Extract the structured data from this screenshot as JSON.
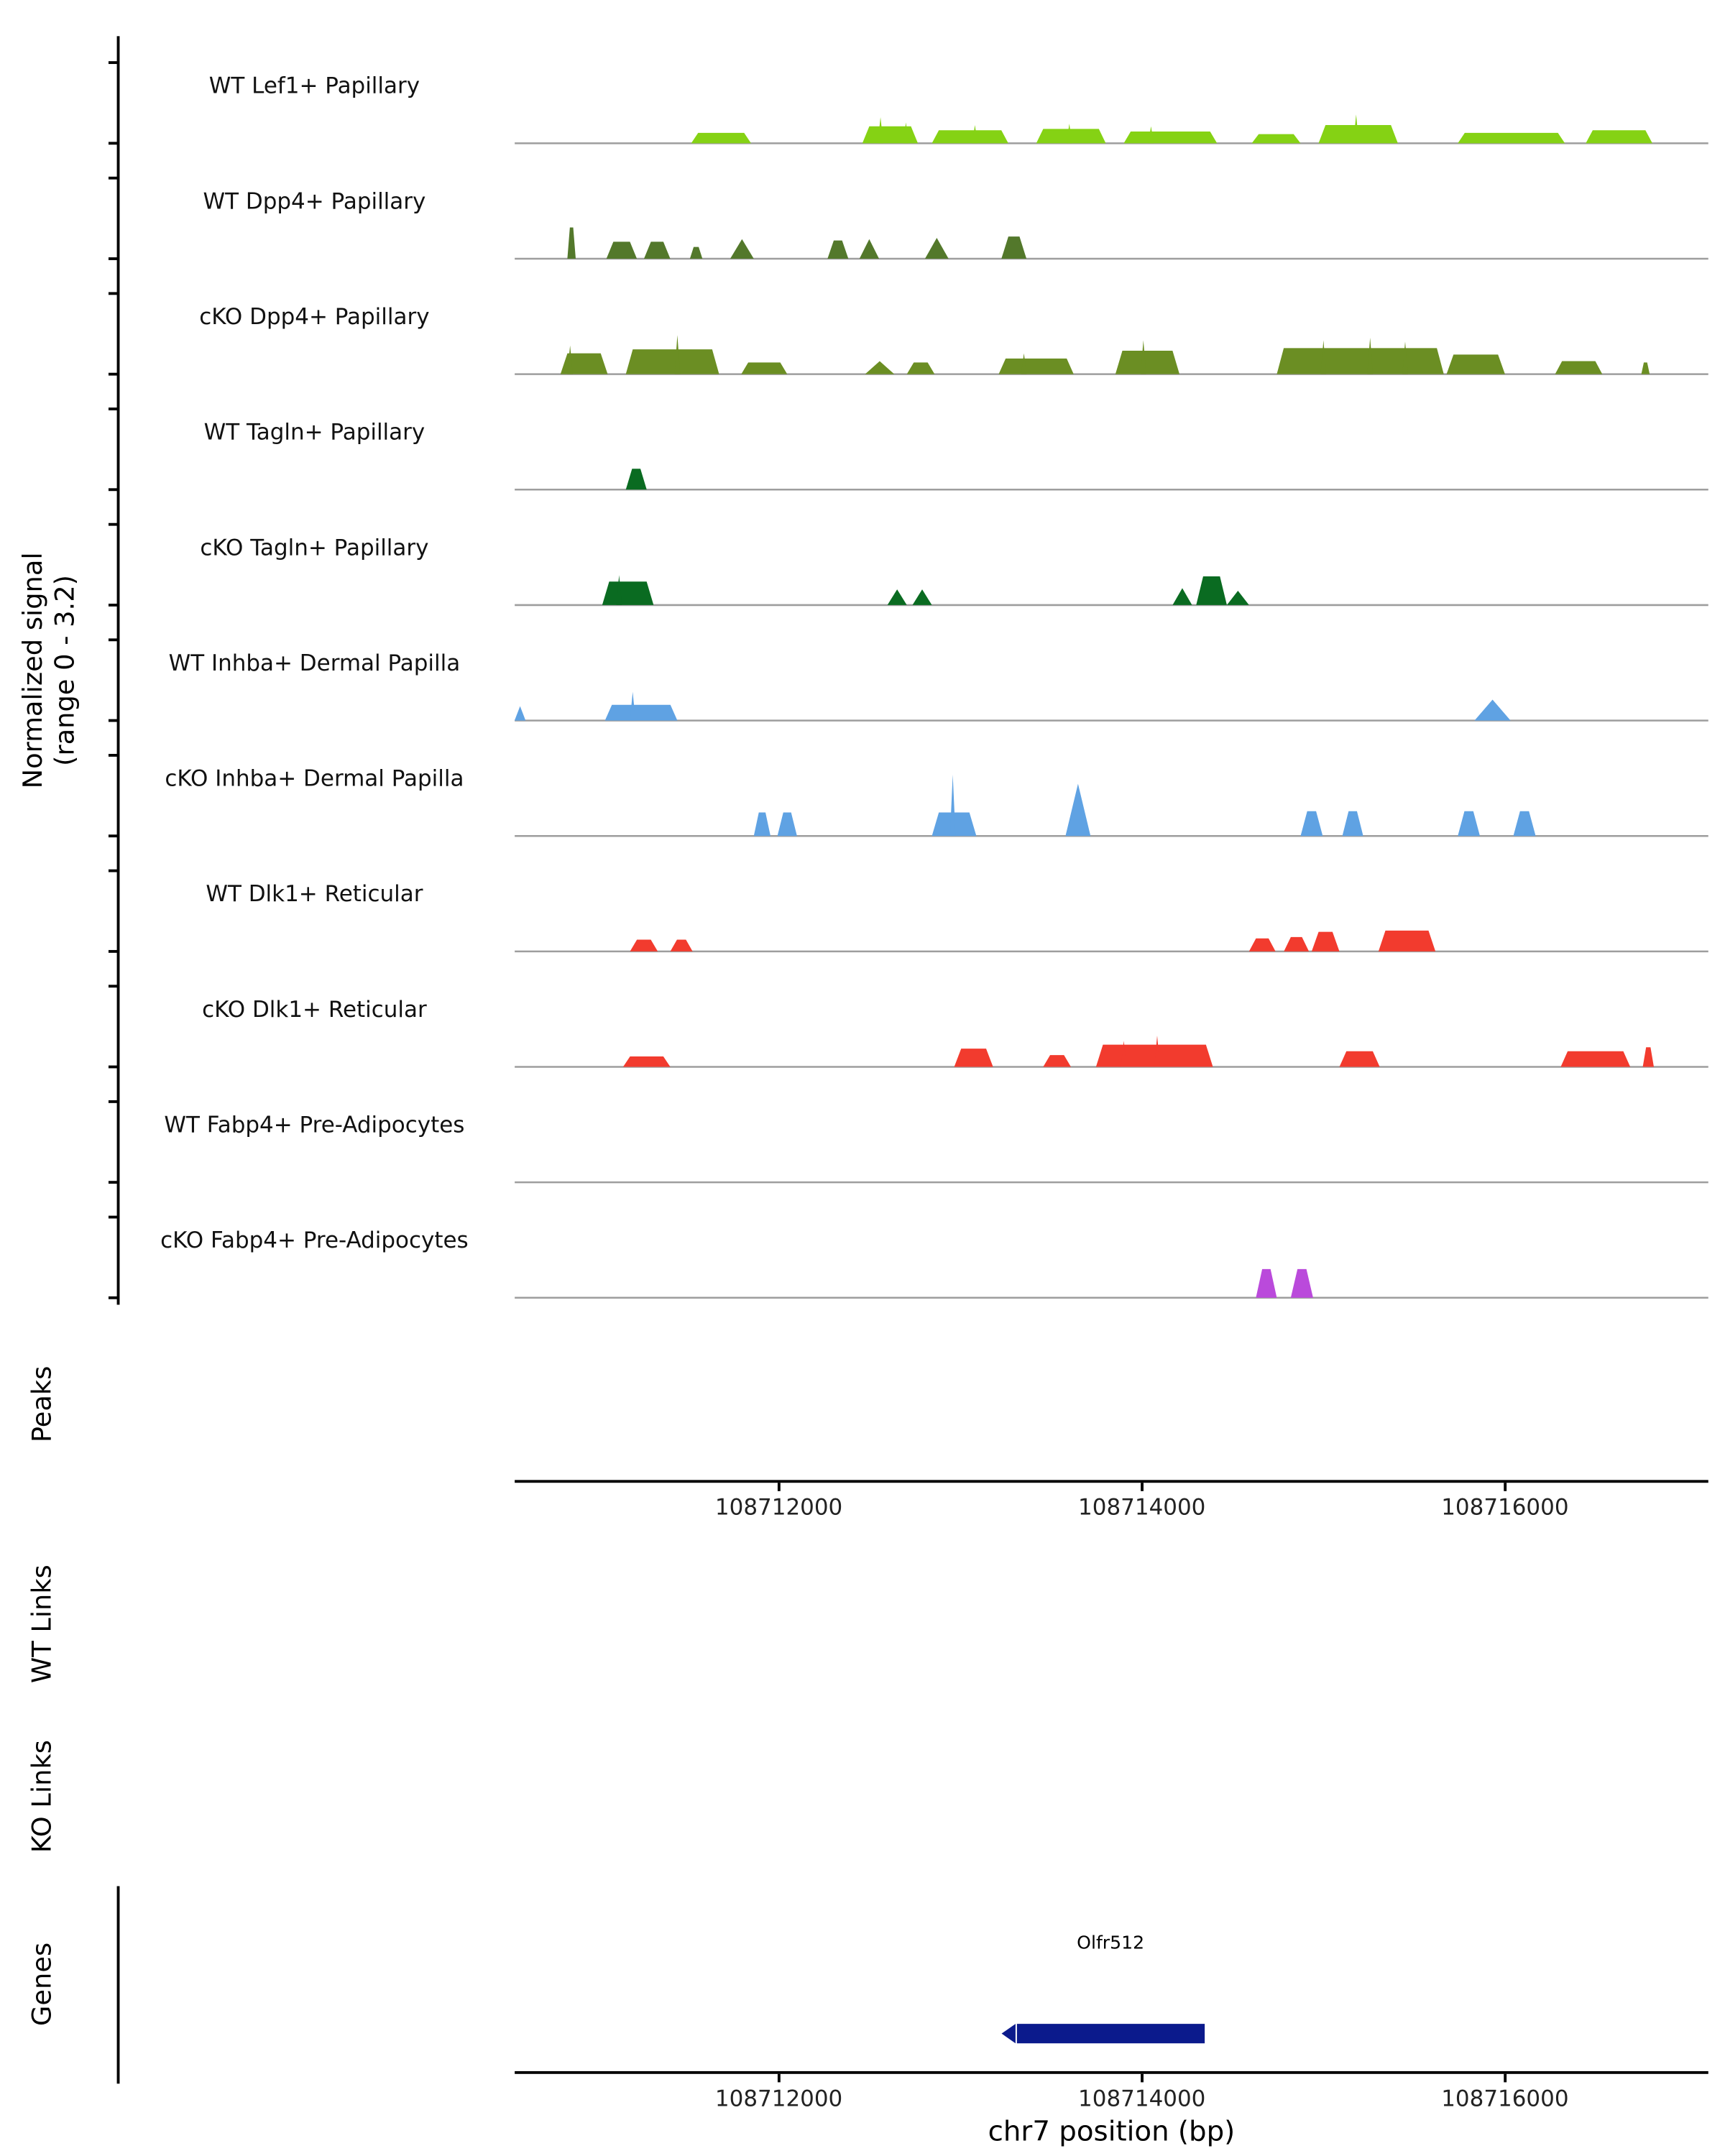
{
  "chart_data": {
    "type": "area",
    "title": "",
    "xlabel": "chr7 position (bp)",
    "y_axis_label": "Normalized signal\n(range 0 - 3.2)",
    "per_track_y_range": [
      0,
      3.2
    ],
    "x_range": [
      108710545,
      108717120
    ],
    "x_ticks": [
      108712000,
      108714000,
      108716000
    ],
    "x_tick_labels": [
      "108712000",
      "108714000",
      "108716000"
    ],
    "grid": false,
    "legend": false,
    "sections": {
      "peaks": "Peaks",
      "wt_links": "WT Links",
      "ko_links": "KO Links",
      "genes": "Genes"
    },
    "baseline_color": "#9e9e9e",
    "genes": [
      {
        "name": "Olfr512",
        "start": 108713310,
        "end": 108714345,
        "strand": "-",
        "color": "#0B1A8C"
      }
    ],
    "tracks": [
      {
        "id": "wt-lef1-papillary",
        "label": "WT Lef1+ Papillary",
        "color": "#85D214",
        "peaks": [
          [
            108711517,
            108711847,
            0.4
          ],
          [
            108712460,
            108712766,
            0.65
          ],
          [
            108712843,
            108713264,
            0.5
          ],
          [
            108713418,
            108713801,
            0.55
          ],
          [
            108713900,
            108714414,
            0.45
          ],
          [
            108714605,
            108714874,
            0.35
          ],
          [
            108714973,
            108715410,
            0.7
          ],
          [
            108715740,
            108716330,
            0.4
          ],
          [
            108716445,
            108716812,
            0.5
          ]
        ],
        "spikes": [
          [
            108712560,
            1.0
          ],
          [
            108712700,
            0.8
          ],
          [
            108713080,
            0.7
          ],
          [
            108713600,
            0.75
          ],
          [
            108714050,
            0.65
          ],
          [
            108715180,
            1.1
          ]
        ]
      },
      {
        "id": "wt-dpp4-papillary",
        "label": "WT Dpp4+ Papillary",
        "color": "#53782B",
        "peaks": [
          [
            108710835,
            108710881,
            1.2
          ],
          [
            108711050,
            108711218,
            0.65
          ],
          [
            108711257,
            108711402,
            0.65
          ],
          [
            108711510,
            108711579,
            0.45
          ],
          [
            108711732,
            108711862,
            0.75,
            "t"
          ],
          [
            108712268,
            108712383,
            0.7
          ],
          [
            108712444,
            108712552,
            0.75,
            "t"
          ],
          [
            108712805,
            108712935,
            0.8,
            "t"
          ],
          [
            108713226,
            108713364,
            0.85
          ]
        ],
        "spikes": []
      },
      {
        "id": "cko-dpp4-papillary",
        "label": "cKO Dpp4+ Papillary",
        "color": "#6B8E23",
        "peaks": [
          [
            108710797,
            108711057,
            0.8
          ],
          [
            108711157,
            108711671,
            0.95
          ],
          [
            108711793,
            108712046,
            0.45
          ],
          [
            108712475,
            108712636,
            0.5,
            "t"
          ],
          [
            108712705,
            108712858,
            0.45
          ],
          [
            108713211,
            108713624,
            0.6
          ],
          [
            108713854,
            108714207,
            0.9
          ],
          [
            108714743,
            108715663,
            1.0
          ],
          [
            108715678,
            108716000,
            0.75
          ],
          [
            108716276,
            108716536,
            0.5
          ],
          [
            108716751,
            108716797,
            0.45
          ]
        ],
        "spikes": [
          [
            108710850,
            1.1
          ],
          [
            108711441,
            1.5
          ],
          [
            108713350,
            0.8
          ],
          [
            108714008,
            1.3
          ],
          [
            108715000,
            1.3
          ],
          [
            108715257,
            1.4
          ],
          [
            108715450,
            1.25
          ]
        ]
      },
      {
        "id": "wt-tagln-papillary",
        "label": "WT Tagln+ Papillary",
        "color": "#0A6B21",
        "peaks": [
          [
            108711157,
            108711272,
            0.8
          ]
        ],
        "spikes": []
      },
      {
        "id": "cko-tagln-papillary",
        "label": "cKO Tagln+ Papillary",
        "color": "#0A6B21",
        "peaks": [
          [
            108711027,
            108711310,
            0.9
          ],
          [
            108712598,
            108712705,
            0.6,
            "t"
          ],
          [
            108712736,
            108712843,
            0.6,
            "t"
          ],
          [
            108714169,
            108714276,
            0.65,
            "t"
          ],
          [
            108714299,
            108714468,
            1.1
          ],
          [
            108714468,
            108714590,
            0.55,
            "t"
          ]
        ],
        "spikes": [
          [
            108711120,
            1.15
          ]
        ]
      },
      {
        "id": "wt-inhba-dermal-papilla",
        "label": "WT Inhba+ Dermal Papilla",
        "color": "#5FA2E3",
        "peaks": [
          [
            108710544,
            108710605,
            0.55,
            "t"
          ],
          [
            108711042,
            108711441,
            0.6
          ],
          [
            108715832,
            108716031,
            0.8,
            "t"
          ]
        ],
        "spikes": [
          [
            108711195,
            1.1
          ]
        ]
      },
      {
        "id": "cko-inhba-dermal-papilla",
        "label": "cKO Inhba+ Dermal Papilla",
        "color": "#5FA2E3",
        "peaks": [
          [
            108711862,
            108711954,
            0.9
          ],
          [
            108711992,
            108712100,
            0.9
          ],
          [
            108712843,
            108713088,
            0.9
          ],
          [
            108713579,
            108713717,
            2.0,
            "t"
          ],
          [
            108714874,
            108714996,
            0.95
          ],
          [
            108715104,
            108715219,
            0.95
          ],
          [
            108715740,
            108715862,
            0.95
          ],
          [
            108716046,
            108716169,
            0.95
          ]
        ],
        "spikes": [
          [
            108712958,
            2.35
          ]
        ]
      },
      {
        "id": "wt-dlk1-reticular",
        "label": "WT Dlk1+ Reticular",
        "color": "#F23B2E",
        "peaks": [
          [
            108711180,
            108711333,
            0.45
          ],
          [
            108711402,
            108711525,
            0.45
          ],
          [
            108714590,
            108714736,
            0.5
          ],
          [
            108714782,
            108714920,
            0.55
          ],
          [
            108714935,
            108715088,
            0.75
          ],
          [
            108715303,
            108715617,
            0.8
          ]
        ],
        "spikes": []
      },
      {
        "id": "cko-dlk1-reticular",
        "label": "cKO Dlk1+ Reticular",
        "color": "#F23B2E",
        "peaks": [
          [
            108711142,
            108711402,
            0.4
          ],
          [
            108712966,
            108713180,
            0.7
          ],
          [
            108713456,
            108713609,
            0.45
          ],
          [
            108713747,
            108714391,
            0.85
          ],
          [
            108715088,
            108715310,
            0.6
          ],
          [
            108716307,
            108716690,
            0.6
          ],
          [
            108716759,
            108716820,
            0.75
          ]
        ],
        "spikes": [
          [
            108713900,
            1.0
          ],
          [
            108714084,
            1.2
          ]
        ]
      },
      {
        "id": "wt-fabp4-pre-adipocytes",
        "label": "WT Fabp4+ Pre-Adipocytes",
        "color": "#BA4ADB",
        "peaks": [],
        "spikes": []
      },
      {
        "id": "cko-fabp4-pre-adipocytes",
        "label": "cKO Fabp4+ Pre-Adipocytes",
        "color": "#BA4ADB",
        "peaks": [
          [
            108714628,
            108714743,
            1.1
          ],
          [
            108714820,
            108714943,
            1.1
          ]
        ],
        "spikes": []
      }
    ]
  }
}
